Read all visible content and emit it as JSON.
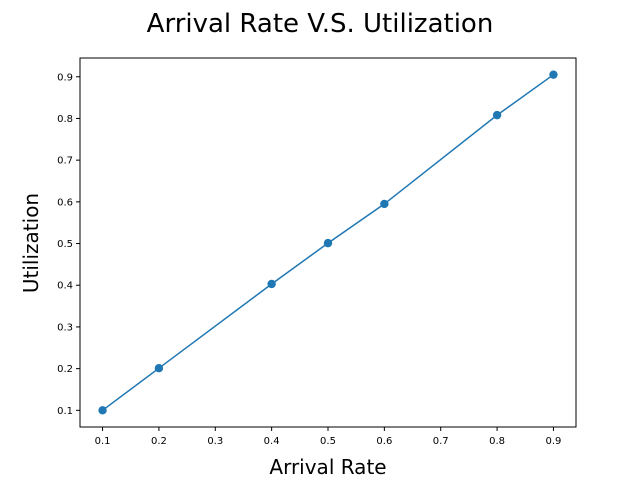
{
  "chart_data": {
    "type": "line",
    "title": "Arrival Rate V.S. Utilization",
    "xlabel": "Arrival Rate",
    "ylabel": "Utilization",
    "x": [
      0.1,
      0.2,
      0.4,
      0.5,
      0.6,
      0.8,
      0.9
    ],
    "series": [
      {
        "values": [
          0.1,
          0.201,
          0.403,
          0.501,
          0.595,
          0.808,
          0.905
        ],
        "color": "#1f77b4",
        "marker": "circle"
      }
    ],
    "xticks": [
      "0.1",
      "0.2",
      "0.3",
      "0.4",
      "0.5",
      "0.6",
      "0.7",
      "0.8",
      "0.9"
    ],
    "yticks": [
      "0.1",
      "0.2",
      "0.3",
      "0.4",
      "0.5",
      "0.6",
      "0.7",
      "0.8",
      "0.9"
    ],
    "xlim": [
      0.06,
      0.94
    ],
    "ylim": [
      0.06,
      0.945
    ],
    "grid": false,
    "legend": "none"
  }
}
